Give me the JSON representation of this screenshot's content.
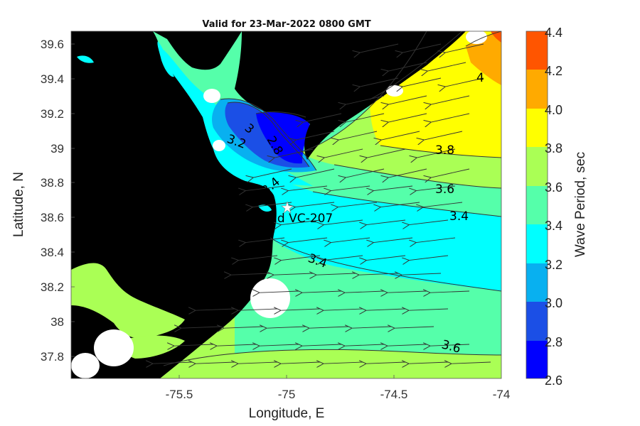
{
  "title": "Valid for 23-Mar-2022 0800 GMT",
  "xlabel": "Longitude, E",
  "ylabel": "Latitude, N",
  "colorbar_label": "Wave Period, sec",
  "x_ticks": [
    "-75.5",
    "-75",
    "-74.5",
    "-74"
  ],
  "y_ticks": [
    "39.6",
    "39.4",
    "39.2",
    "39",
    "38.8",
    "38.6",
    "38.4",
    "38.2",
    "38",
    "37.8"
  ],
  "colorbar_ticks": [
    "4.4",
    "4.2",
    "4.0",
    "3.8",
    "3.6",
    "3.4",
    "3.2",
    "3.0",
    "2.8",
    "2.6"
  ],
  "station_label": "Wind VC-207",
  "contour_labels": [
    "4",
    "3.8",
    "3.6",
    "3.4",
    "3.4",
    "3.6",
    "3.4",
    "3.2",
    "3",
    "2.8"
  ],
  "colors": {
    "c26": "#0000ff",
    "c28": "#1b4fe6",
    "c30": "#0f8df5",
    "c32": "#08b0f0",
    "c34": "#00ffff",
    "c36": "#55ffaa",
    "c38": "#aaff55",
    "c40": "#ffff00",
    "c42": "#ffaa00",
    "c44": "#ff5500",
    "land": "#000000"
  },
  "chart_data": {
    "type": "heatmap",
    "title": "Valid for 23-Mar-2022 0800 GMT",
    "xlabel": "Longitude, E",
    "ylabel": "Latitude, N",
    "xlim": [
      -76.0,
      -74.0
    ],
    "ylim": [
      37.67,
      39.67
    ],
    "colorbar": {
      "label": "Wave Period, sec",
      "range": [
        2.6,
        4.4
      ],
      "levels": [
        2.6,
        2.8,
        3.0,
        3.2,
        3.4,
        3.6,
        3.8,
        4.0,
        4.2,
        4.4
      ]
    },
    "station": {
      "name": "Wind VC-207",
      "lon": -75.0,
      "lat": 38.66
    },
    "contour_labels": [
      {
        "value": "4",
        "lon": -74.18,
        "lat": 39.42
      },
      {
        "value": "3.8",
        "lon": -74.26,
        "lat": 38.99
      },
      {
        "value": "3.6",
        "lon": -74.26,
        "lat": 38.78
      },
      {
        "value": "3.4",
        "lon": -74.17,
        "lat": 38.62
      },
      {
        "value": "3.4",
        "lon": -74.87,
        "lat": 38.42
      },
      {
        "value": "3.6",
        "lon": -74.22,
        "lat": 37.88
      },
      {
        "value": "3.4",
        "lon": -75.08,
        "lat": 38.76
      },
      {
        "value": "3.2",
        "lon": -75.24,
        "lat": 39.07
      },
      {
        "value": "3",
        "lon": -75.15,
        "lat": 39.13
      },
      {
        "value": "2.8",
        "lon": -75.07,
        "lat": 39.02
      }
    ]
  }
}
